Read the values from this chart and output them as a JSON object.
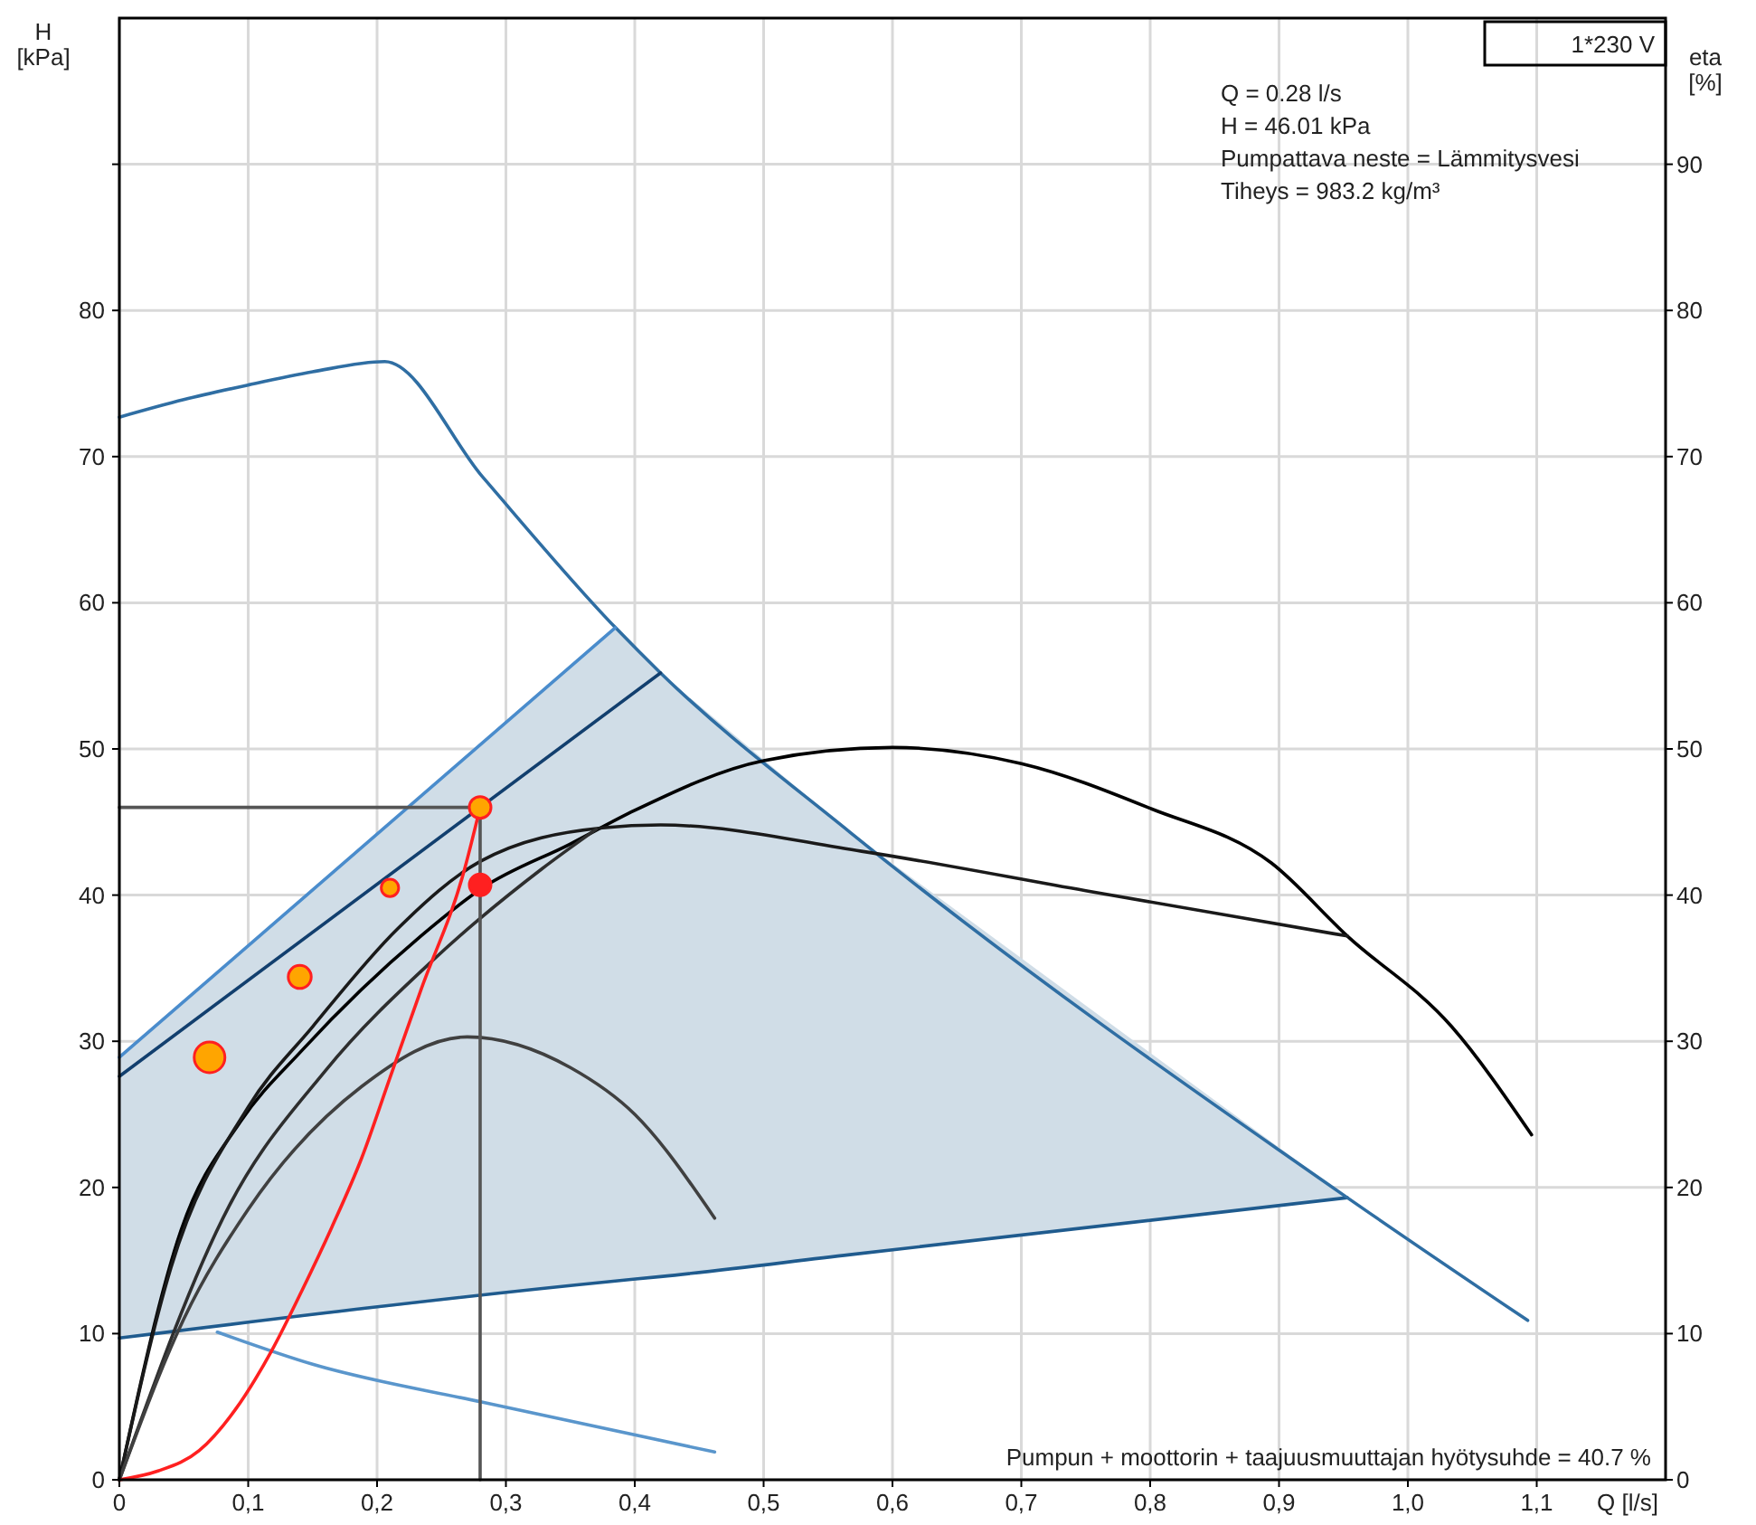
{
  "chart_data": {
    "type": "line",
    "xlabel": "Q [l/s]",
    "ylabel": "H [kPa]",
    "y2label": "eta [%]",
    "xlim": [
      0,
      1.2
    ],
    "xticks": [
      0,
      {
        "value": 0.1,
        "label": "0,1"
      },
      {
        "value": 0.2,
        "label": "0,2"
      },
      {
        "value": 0.3,
        "label": "0,3"
      },
      {
        "value": 0.4,
        "label": "0,4"
      },
      {
        "value": 0.5,
        "label": "0,5"
      },
      {
        "value": 0.6,
        "label": "0,6"
      },
      {
        "value": 0.7,
        "label": "0,7"
      },
      {
        "value": 0.8,
        "label": "0,8"
      },
      {
        "value": 0.9,
        "label": "0,9"
      },
      {
        "value": 1.0,
        "label": "1,0"
      },
      {
        "value": 1.1,
        "label": "1,1"
      }
    ],
    "ylim": [
      0,
      100
    ],
    "yticks": [
      0,
      10,
      20,
      30,
      40,
      50,
      60,
      70,
      80,
      {
        "value": 90,
        "label": null
      }
    ],
    "y2lim": [
      0,
      100
    ],
    "y2ticks": [
      0,
      10,
      20,
      30,
      40,
      50,
      60,
      70,
      80,
      90
    ],
    "grid": true,
    "line_style": "solid",
    "series": [
      {
        "color": "#1f5b8e",
        "x": [
          0,
          0.385,
          0.42,
          0.567,
          0.953
        ],
        "values": [
          9.7,
          13.6,
          13.9,
          15.4,
          19.3
        ],
        "lower": [
          9.7,
          13.6,
          13.9,
          15.4,
          19.3
        ],
        "upper": [
          28.9,
          58.3,
          55.2,
          44.3,
          19.3
        ]
      },
      {
        "color": "#2f6ea3",
        "x": [
          0,
          0.05,
          0.1,
          0.15,
          0.206,
          0.282,
          0.385,
          0.42,
          0.567,
          0.953,
          1.093
        ],
        "values": [
          72.7,
          73.9,
          74.9,
          75.8,
          76.5,
          68.6,
          58.3,
          55.2,
          44.3,
          19.3,
          10.9
        ]
      },
      {
        "color": "#4a8ccc",
        "x": [
          0,
          0.385
        ],
        "values": [
          28.9,
          58.3
        ]
      },
      {
        "color": "#123f6e",
        "x": [
          0,
          0.42
        ],
        "values": [
          27.6,
          55.2
        ]
      },
      {
        "color": "#5a96cc",
        "x": [
          0.076,
          0.15,
          0.282,
          0.462
        ],
        "values": [
          10.1,
          7.9,
          5.3,
          1.9
        ]
      },
      {
        "color": "#000000",
        "x": [
          0,
          0.048,
          0.094,
          0.142,
          0.234,
          0.282,
          0.35,
          0.4,
          0.5,
          0.6,
          0.7,
          0.801,
          0.894,
          0.953,
          1.034,
          1.096
        ],
        "values": [
          0,
          17.1,
          24.5,
          29.4,
          37.2,
          40.5,
          43.5,
          45.8,
          49.2,
          50.1,
          49,
          45.9,
          42.2,
          37.2,
          31,
          23.6
        ]
      },
      {
        "color": "#1a1a1a",
        "x": [
          0,
          0.04,
          0.1,
          0.15,
          0.216,
          0.28,
          0.375,
          0.42,
          0.576,
          0.75,
          0.953
        ],
        "values": [
          0,
          14.5,
          25.5,
          31,
          37.7,
          42.3,
          44.6,
          44.8,
          43,
          40.3,
          37.2
        ]
      },
      {
        "color": "#2e2e2e",
        "x": [
          0,
          0.085,
          0.16,
          0.244,
          0.328,
          0.37
        ],
        "values": [
          0,
          18.7,
          28,
          35.6,
          41.8,
          44.5
        ]
      },
      {
        "color": "#404040",
        "x": [
          0,
          0.05,
          0.1,
          0.188,
          0.27,
          0.35,
          0.4,
          0.462
        ],
        "values": [
          0,
          11,
          18.5,
          26.9,
          30.3,
          28.2,
          25,
          17.9
        ]
      },
      {
        "color": "#555555",
        "x": [
          0,
          0.28,
          0.28
        ],
        "values": [
          46,
          46,
          0
        ]
      },
      {
        "color": "#ff2020",
        "x": [
          0,
          0.03,
          0.062,
          0.09,
          0.118,
          0.142,
          0.165,
          0.188,
          0.21,
          0.234,
          0.268,
          0.28
        ],
        "values": [
          0,
          0.6,
          2,
          4.8,
          8.8,
          13,
          17.3,
          22,
          27.5,
          33.5,
          41.8,
          46
        ]
      },
      {
        "type": "bubble",
        "color": "#ffa500",
        "marker": "circle",
        "x": [
          0.07,
          0.14,
          0.21
        ],
        "values": [
          28.9,
          34.4,
          40.5
        ],
        "sizes": [
          1,
          0.56,
          0.32
        ]
      },
      {
        "type": "scatter",
        "color": "#ffa500",
        "marker": "circle",
        "x": [
          0.28
        ],
        "values": [
          46
        ]
      },
      {
        "type": "scatter",
        "color": "#ff2020",
        "marker": "circle",
        "x": [
          0.28
        ],
        "values": [
          40.7
        ]
      }
    ],
    "annotations": [
      "1*230 V",
      "Q = 0.28 l/s",
      "H = 46.01 kPa",
      "Pumpattava neste = Lämmitysvesi",
      "Tiheys = 983.2 kg/m³",
      "Pumpun + moottorin + taajuusmuuttajan hyötysuhde = 40.7 %"
    ]
  }
}
